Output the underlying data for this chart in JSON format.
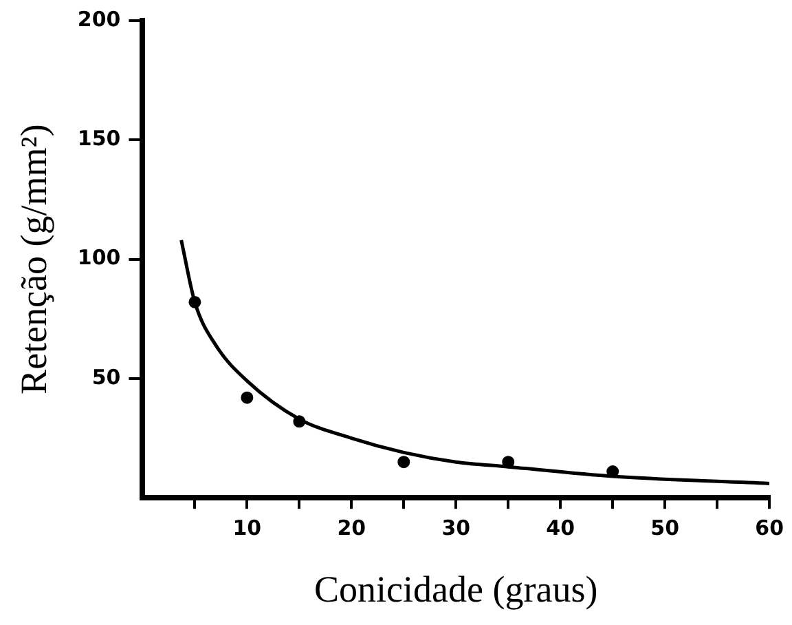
{
  "chart_data": {
    "type": "scatter",
    "xlabel": "Conicidade (graus)",
    "ylabel": "Retenção (g/mm²)",
    "xlim": [
      0,
      60
    ],
    "ylim": [
      0,
      200
    ],
    "xticks": [
      {
        "value": 5,
        "label": null
      },
      10,
      {
        "value": 15,
        "label": null
      },
      20,
      {
        "value": 25,
        "label": null
      },
      30,
      {
        "value": 35,
        "label": null
      },
      40,
      {
        "value": 45,
        "label": null
      },
      50,
      {
        "value": 55,
        "label": null
      },
      60
    ],
    "yticks": [
      50,
      100,
      150,
      200
    ],
    "grid": false,
    "legend": false,
    "marker": "circle",
    "series": [
      {
        "color": "#000000",
        "x": [
          5,
          10,
          15,
          25,
          35,
          45
        ],
        "values": [
          82,
          42,
          32,
          15,
          15,
          11
        ]
      },
      {
        "type": "line",
        "color": "#000000",
        "marker": "none",
        "x": [
          3.7,
          5,
          7,
          10,
          15,
          20,
          25,
          30,
          35,
          45,
          60
        ],
        "values": [
          108,
          82,
          64,
          49,
          33,
          25,
          19,
          15,
          13,
          9,
          6
        ]
      }
    ]
  }
}
